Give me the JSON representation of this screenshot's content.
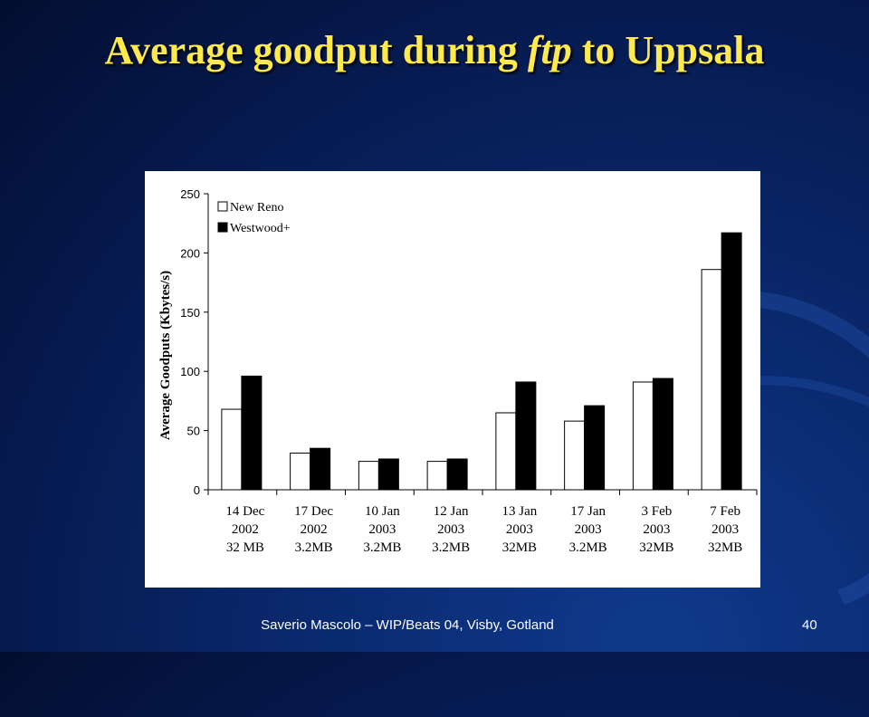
{
  "slide": {
    "title_prefix": "Average goodput during ",
    "title_italic": "ftp",
    "title_suffix": " to Uppsala",
    "footer_text": "Saverio Mascolo  –  WIP/Beats 04,  Visby, Gotland",
    "page_number": "40"
  },
  "chart_data": {
    "type": "bar",
    "ylabel": "Average Goodputs (Kbytes/s)",
    "ylim": [
      0,
      250
    ],
    "yticks": [
      0,
      50,
      100,
      150,
      200,
      250
    ],
    "categories": [
      [
        "14 Dec",
        "2002",
        "32 MB"
      ],
      [
        "17 Dec",
        "2002",
        "3.2MB"
      ],
      [
        "10 Jan",
        "2003",
        "3.2MB"
      ],
      [
        "12 Jan",
        "2003",
        "3.2MB"
      ],
      [
        "13 Jan",
        "2003",
        "32MB"
      ],
      [
        "17 Jan",
        "2003",
        "3.2MB"
      ],
      [
        "3 Feb",
        "2003",
        "32MB"
      ],
      [
        "7 Feb",
        "2003",
        "32MB"
      ]
    ],
    "series": [
      {
        "name": "New Reno",
        "color": "#ffffff",
        "values": [
          68,
          31,
          24,
          24,
          65,
          58,
          91,
          186
        ]
      },
      {
        "name": "Westwood+",
        "color": "#000000",
        "values": [
          96,
          35,
          26,
          26,
          91,
          71,
          94,
          217
        ]
      }
    ],
    "legend_position": "top-left",
    "grid": false
  }
}
